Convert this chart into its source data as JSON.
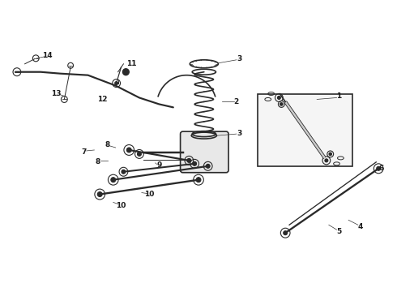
{
  "bg_color": "#ffffff",
  "line_color": "#2a2a2a",
  "label_color": "#1a1a1a",
  "fig_width": 4.9,
  "fig_height": 3.6,
  "dpi": 100
}
